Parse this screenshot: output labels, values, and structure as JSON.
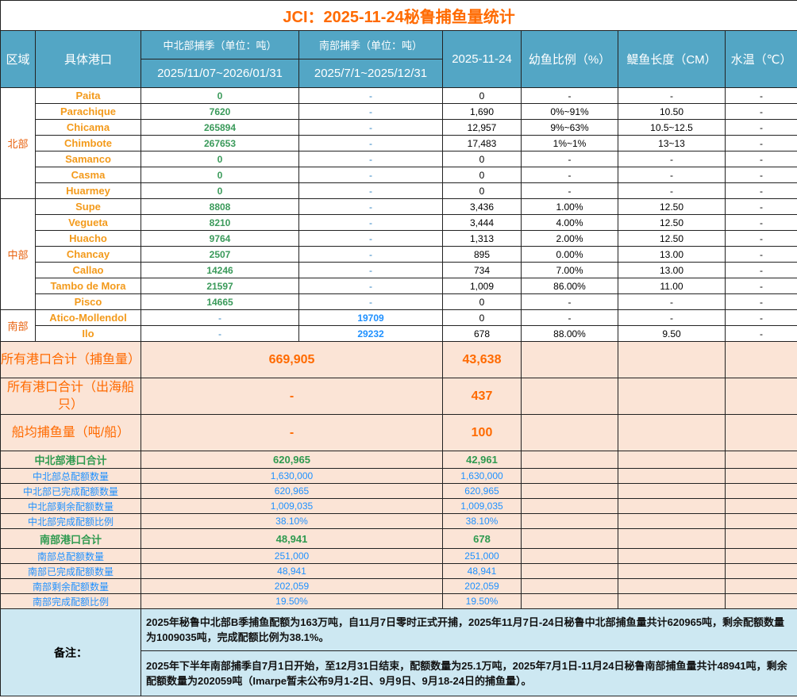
{
  "title": "JCI：2025-11-24秘鲁捕鱼量统计",
  "header": {
    "region": "区域",
    "port": "具体港口",
    "north_season": "中北部捕季（单位：吨）",
    "south_season": "南部捕季（单位：吨）",
    "north_period": "2025/11/07~2026/01/31",
    "south_period": "2025/7/1~2025/12/31",
    "date": "2025-11-24",
    "juvenile": "幼鱼比例（%）",
    "length": "鳀鱼长度（CM）",
    "temp": "水温（℃）"
  },
  "regions": [
    {
      "name": "北部",
      "rows": [
        [
          "Paita",
          "0",
          "-",
          "0",
          "-",
          "-",
          "-"
        ],
        [
          "Parachique",
          "7620",
          "-",
          "1,690",
          "0%~91%",
          "10.50",
          "-"
        ],
        [
          "Chicama",
          "265894",
          "-",
          "12,957",
          "9%~63%",
          "10.5~12.5",
          "-"
        ],
        [
          "Chimbote",
          "267653",
          "-",
          "17,483",
          "1%~1%",
          "13~13",
          "-"
        ],
        [
          "Samanco",
          "0",
          "-",
          "0",
          "-",
          "-",
          "-"
        ],
        [
          "Casma",
          "0",
          "-",
          "0",
          "-",
          "-",
          "-"
        ],
        [
          "Huarmey",
          "0",
          "-",
          "0",
          "-",
          "-",
          "-"
        ]
      ]
    },
    {
      "name": "中部",
      "rows": [
        [
          "Supe",
          "8808",
          "-",
          "3,436",
          "1.00%",
          "12.50",
          "-"
        ],
        [
          "Vegueta",
          "8210",
          "-",
          "3,444",
          "4.00%",
          "12.50",
          "-"
        ],
        [
          "Huacho",
          "9764",
          "-",
          "1,313",
          "2.00%",
          "12.50",
          "-"
        ],
        [
          "Chancay",
          "2507",
          "-",
          "895",
          "0.00%",
          "13.00",
          "-"
        ],
        [
          "Callao",
          "14246",
          "-",
          "734",
          "7.00%",
          "13.00",
          "-"
        ],
        [
          "Tambo de Mora",
          "21597",
          "-",
          "1,009",
          "86.00%",
          "11.00",
          "-"
        ],
        [
          "Pisco",
          "14665",
          "-",
          "0",
          "-",
          "-",
          "-"
        ]
      ]
    },
    {
      "name": "南部",
      "rows": [
        [
          "Atico-Mollendol",
          "-",
          "19709",
          "0",
          "-",
          "-",
          "-"
        ],
        [
          "Ilo",
          "-",
          "29232",
          "678",
          "88.00%",
          "9.50",
          "-"
        ]
      ]
    }
  ],
  "summary": [
    {
      "style": "big",
      "label": "所有港口合计（捕鱼量）",
      "season": "669,905",
      "day": "43,638"
    },
    {
      "style": "big",
      "label": "所有港口合计（出海船只）",
      "season": "-",
      "day": "437"
    },
    {
      "style": "big",
      "label": "船均捕鱼量（吨/船）",
      "season": "-",
      "day": "100"
    },
    {
      "style": "g",
      "label": "中北部港口合计",
      "season": "620,965",
      "day": "42,961"
    },
    {
      "style": "b",
      "label": "中北部总配额数量",
      "season": "1,630,000",
      "day": "1,630,000"
    },
    {
      "style": "b",
      "label": "中北部已完成配额数量",
      "season": "620,965",
      "day": "620,965"
    },
    {
      "style": "b",
      "label": "中北部剩余配额数量",
      "season": "1,009,035",
      "day": "1,009,035"
    },
    {
      "style": "b",
      "label": "中北部完成配额比例",
      "season": "38.10%",
      "day": "38.10%"
    },
    {
      "style": "g",
      "label": "南部港口合计",
      "season": "48,941",
      "day": "678"
    },
    {
      "style": "b",
      "label": "南部总配额数量",
      "season": "251,000",
      "day": "251,000"
    },
    {
      "style": "b",
      "label": "南部已完成配额数量",
      "season": "48,941",
      "day": "48,941"
    },
    {
      "style": "b",
      "label": "南部剩余配额数量",
      "season": "202,059",
      "day": "202,059"
    },
    {
      "style": "b",
      "label": "南部完成配额比例",
      "season": "19.50%",
      "day": "19.50%"
    }
  ],
  "notes": {
    "label": "备注：",
    "items": [
      "2025年秘鲁中北部B季捕鱼配额为163万吨，自11月7日零时正式开捕，2025年11月7日-24日秘鲁中北部捕鱼量共计620965吨，剩余配额数量为1009035吨，完成配额比例为38.1%。",
      "2025年下半年南部捕季自7月1日开始，至12月31日结束，配额数量为25.1万吨，2025年7月1日-11月24日秘鲁南部捕鱼量共计48941吨，剩余配额数量为202059吨（Imarpe暂未公布9月1-2日、9月9日、9月18-24日的捕鱼量）。"
    ]
  }
}
